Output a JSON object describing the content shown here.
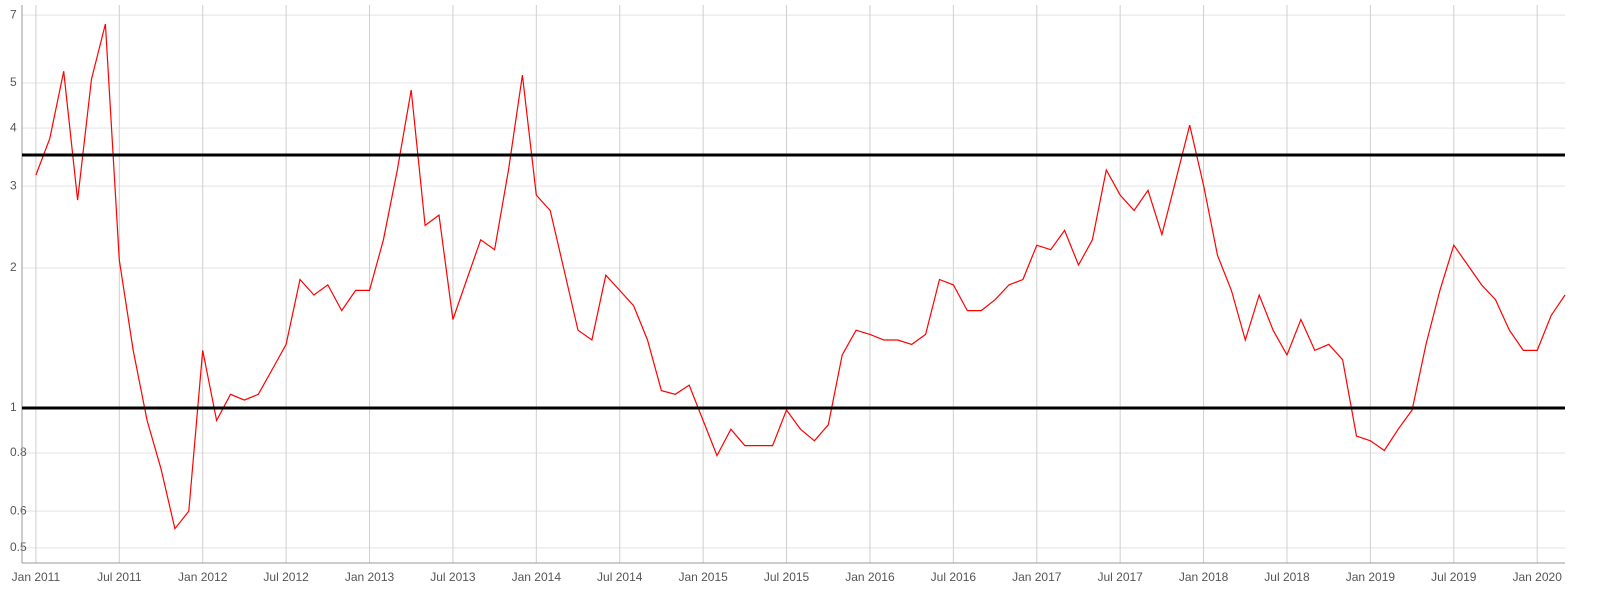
{
  "chart_data": {
    "type": "line",
    "log_scale": true,
    "grid": true,
    "x": [
      "2011-01",
      "2011-02",
      "2011-03",
      "2011-04",
      "2011-05",
      "2011-06",
      "2011-07",
      "2011-08",
      "2011-09",
      "2011-10",
      "2011-11",
      "2011-12",
      "2012-01",
      "2012-02",
      "2012-03",
      "2012-04",
      "2012-05",
      "2012-06",
      "2012-07",
      "2012-08",
      "2012-09",
      "2012-10",
      "2012-11",
      "2012-12",
      "2013-01",
      "2013-02",
      "2013-03",
      "2013-04",
      "2013-05",
      "2013-06",
      "2013-07",
      "2013-08",
      "2013-09",
      "2013-10",
      "2013-11",
      "2013-12",
      "2014-01",
      "2014-02",
      "2014-03",
      "2014-04",
      "2014-05",
      "2014-06",
      "2014-07",
      "2014-08",
      "2014-09",
      "2014-10",
      "2014-11",
      "2014-12",
      "2015-01",
      "2015-02",
      "2015-03",
      "2015-04",
      "2015-05",
      "2015-06",
      "2015-07",
      "2015-08",
      "2015-09",
      "2015-10",
      "2015-11",
      "2015-12",
      "2016-01",
      "2016-02",
      "2016-03",
      "2016-04",
      "2016-05",
      "2016-06",
      "2016-07",
      "2016-08",
      "2016-09",
      "2016-10",
      "2016-11",
      "2016-12",
      "2017-01",
      "2017-02",
      "2017-03",
      "2017-04",
      "2017-05",
      "2017-06",
      "2017-07",
      "2017-08",
      "2017-09",
      "2017-10",
      "2017-11",
      "2017-12",
      "2018-01",
      "2018-02",
      "2018-03",
      "2018-04",
      "2018-05",
      "2018-06",
      "2018-07",
      "2018-08",
      "2018-09",
      "2018-10",
      "2018-11",
      "2018-12",
      "2019-01",
      "2019-02",
      "2019-03",
      "2019-04",
      "2019-05",
      "2019-06",
      "2019-07",
      "2019-08",
      "2019-09",
      "2019-10",
      "2019-11",
      "2019-12",
      "2020-01",
      "2020-02",
      "2020-03"
    ],
    "series": [
      {
        "color": "#ff0000",
        "values": [
          3.17,
          3.8,
          5.3,
          2.8,
          5.1,
          6.7,
          2.08,
          1.33,
          0.94,
          0.74,
          0.55,
          0.6,
          1.33,
          0.94,
          1.07,
          1.04,
          1.07,
          1.21,
          1.37,
          1.89,
          1.75,
          1.84,
          1.62,
          1.79,
          1.79,
          2.3,
          3.25,
          4.83,
          2.47,
          2.6,
          1.55,
          1.89,
          2.3,
          2.19,
          3.25,
          5.2,
          2.87,
          2.66,
          1.98,
          1.47,
          1.4,
          1.93,
          1.79,
          1.66,
          1.4,
          1.09,
          1.07,
          1.12,
          0.94,
          0.79,
          0.9,
          0.83,
          0.83,
          0.83,
          0.99,
          0.9,
          0.85,
          0.92,
          1.3,
          1.47,
          1.44,
          1.4,
          1.4,
          1.37,
          1.44,
          1.89,
          1.84,
          1.62,
          1.62,
          1.71,
          1.84,
          1.89,
          2.24,
          2.19,
          2.41,
          2.03,
          2.3,
          3.25,
          2.87,
          2.66,
          2.94,
          2.36,
          3.09,
          4.06,
          3.01,
          2.13,
          1.79,
          1.4,
          1.75,
          1.47,
          1.3,
          1.55,
          1.33,
          1.37,
          1.27,
          0.87,
          0.85,
          0.81,
          0.9,
          0.99,
          1.37,
          1.79,
          2.24,
          2.03,
          1.84,
          1.71,
          1.47,
          1.33,
          1.33,
          1.58,
          1.75
        ]
      }
    ],
    "hlines": [
      1,
      3.5
    ],
    "hline_color": "#000000",
    "xlim": [
      "2010-12",
      "2020-03"
    ],
    "xticks": [
      {
        "value": "2011-01",
        "label": "Jan 2011"
      },
      {
        "value": "2011-07",
        "label": "Jul 2011"
      },
      {
        "value": "2012-01",
        "label": "Jan 2012"
      },
      {
        "value": "2012-07",
        "label": "Jul 2012"
      },
      {
        "value": "2013-01",
        "label": "Jan 2013"
      },
      {
        "value": "2013-07",
        "label": "Jul 2013"
      },
      {
        "value": "2014-01",
        "label": "Jan 2014"
      },
      {
        "value": "2014-07",
        "label": "Jul 2014"
      },
      {
        "value": "2015-01",
        "label": "Jan 2015"
      },
      {
        "value": "2015-07",
        "label": "Jul 2015"
      },
      {
        "value": "2016-01",
        "label": "Jan 2016"
      },
      {
        "value": "2016-07",
        "label": "Jul 2016"
      },
      {
        "value": "2017-01",
        "label": "Jan 2017"
      },
      {
        "value": "2017-07",
        "label": "Jul 2017"
      },
      {
        "value": "2018-01",
        "label": "Jan 2018"
      },
      {
        "value": "2018-07",
        "label": "Jul 2018"
      },
      {
        "value": "2019-01",
        "label": "Jan 2019"
      },
      {
        "value": "2019-07",
        "label": "Jul 2019"
      },
      {
        "value": "2020-01",
        "label": "Jan 2020"
      }
    ],
    "ylim": [
      0.464,
      7.36
    ],
    "yticks": [
      0.5,
      0.6,
      0.8,
      1,
      2,
      3,
      4,
      5,
      7
    ]
  }
}
